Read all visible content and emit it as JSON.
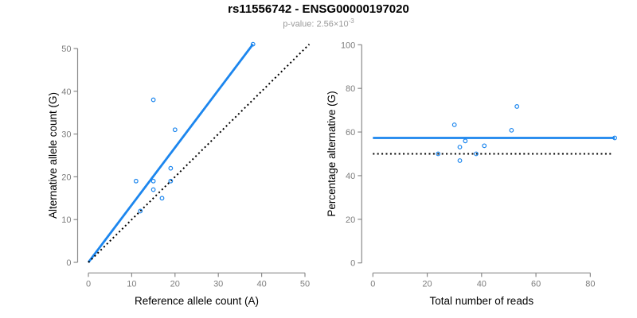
{
  "header": {
    "title": "rs11556742 - ENSG00000197020",
    "subtitle_prefix": "p-value: 2.56×10",
    "subtitle_exponent": "-3"
  },
  "colors": {
    "accent_blue": "#1C86EE",
    "line_black": "#000000",
    "axis_gray": "#8a8a8a",
    "tick_label_gray": "#7d7d7d",
    "axis_title_black": "#000000"
  },
  "chart_data": [
    {
      "type": "scatter",
      "panel": "allele-counts",
      "xlabel": "Reference allele count (A)",
      "ylabel": "Alternative allele count (G)",
      "xlim": [
        0,
        50
      ],
      "ylim": [
        0,
        50
      ],
      "xticks": [
        0,
        10,
        20,
        30,
        40,
        50
      ],
      "yticks": [
        0,
        10,
        20,
        30,
        40,
        50
      ],
      "grid": false,
      "marker": "open-circle",
      "points": [
        [
          38,
          51
        ],
        [
          15,
          38
        ],
        [
          20,
          31
        ],
        [
          19,
          22
        ],
        [
          11,
          19
        ],
        [
          15,
          19
        ],
        [
          19,
          19
        ],
        [
          15,
          17
        ],
        [
          17,
          15
        ],
        [
          12,
          12
        ]
      ],
      "lines": [
        {
          "role": "fit-line",
          "style": "solid",
          "color_key": "accent_blue",
          "x1": 0,
          "y1": 0,
          "x2": 38,
          "y2": 51
        },
        {
          "role": "identity-line",
          "style": "dotted",
          "color_key": "line_black",
          "x1": 0,
          "y1": 0,
          "x2": 51,
          "y2": 51
        }
      ]
    },
    {
      "type": "scatter",
      "panel": "percentage-vs-coverage",
      "xlabel": "Total number of reads",
      "ylabel": "Percentage alternative (G)",
      "xlim": [
        0,
        89
      ],
      "ylim": [
        0,
        100
      ],
      "xticks": [
        0,
        20,
        40,
        60,
        80
      ],
      "yticks": [
        0,
        20,
        40,
        60,
        80,
        100
      ],
      "grid": false,
      "marker": "open-circle",
      "points": [
        [
          89,
          57.3
        ],
        [
          53,
          71.7
        ],
        [
          51,
          60.8
        ],
        [
          41,
          53.7
        ],
        [
          30,
          63.3
        ],
        [
          34,
          55.9
        ],
        [
          38,
          50
        ],
        [
          32,
          53.1
        ],
        [
          32,
          46.9
        ],
        [
          24,
          50
        ]
      ],
      "lines": [
        {
          "role": "mean-percentage-line",
          "style": "solid",
          "color_key": "accent_blue",
          "x1": 0,
          "y1": 57.3,
          "x2": 89,
          "y2": 57.3
        },
        {
          "role": "fifty-percent-line",
          "style": "dotted",
          "color_key": "line_black",
          "x1": 0,
          "y1": 50,
          "x2": 88,
          "y2": 50
        }
      ]
    }
  ]
}
